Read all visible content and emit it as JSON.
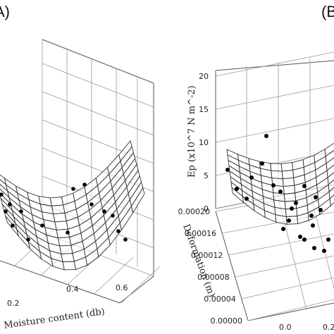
{
  "panels": [
    {
      "label": "A)"
    },
    {
      "label": "(B"
    }
  ],
  "chart_data": [
    {
      "type": "scatter",
      "panel": "A)",
      "xlabel": "Moisture content (db)",
      "x_ticks": [
        "0.2",
        "0.4",
        "0.6"
      ],
      "points": [
        {
          "x": 0.05,
          "y": 12
        },
        {
          "x": 0.08,
          "y": 10
        },
        {
          "x": 0.1,
          "y": 14
        },
        {
          "x": 0.12,
          "y": 9
        },
        {
          "x": 0.15,
          "y": 11
        },
        {
          "x": 0.2,
          "y": 8
        },
        {
          "x": 0.25,
          "y": 7
        },
        {
          "x": 0.3,
          "y": 6
        },
        {
          "x": 0.35,
          "y": 7
        },
        {
          "x": 0.4,
          "y": 6
        },
        {
          "x": 0.45,
          "y": 8
        },
        {
          "x": 0.5,
          "y": 9
        },
        {
          "x": 0.55,
          "y": 11
        },
        {
          "x": 0.58,
          "y": 12
        },
        {
          "x": 0.6,
          "y": 10
        }
      ]
    },
    {
      "type": "scatter",
      "panel": "(B",
      "zlabel": "Ep (x10^7 N m^-2)",
      "ylabel": "Deformation (m)",
      "z_ticks": [
        "0",
        "5",
        "10",
        "15",
        "20"
      ],
      "y_ticks": [
        "0.00000",
        "0.00004",
        "0.00008",
        "0.00012",
        "0.00016",
        "0.00020"
      ],
      "x_ticks": [
        "0.0",
        "0.2"
      ],
      "zlim": [
        0,
        20
      ],
      "points": [
        {
          "x": 0.02,
          "y": 0.00018,
          "z": 6
        },
        {
          "x": 0.05,
          "y": 0.00016,
          "z": 11.5
        },
        {
          "x": 0.06,
          "y": 0.00015,
          "z": 7
        },
        {
          "x": 0.08,
          "y": 0.00017,
          "z": 4.5
        },
        {
          "x": 0.1,
          "y": 0.00014,
          "z": 4
        },
        {
          "x": 0.12,
          "y": 0.00012,
          "z": 3.5
        },
        {
          "x": 0.14,
          "y": 0.00011,
          "z": 5
        },
        {
          "x": 0.16,
          "y": 0.0001,
          "z": 3
        },
        {
          "x": 0.18,
          "y": 9e-05,
          "z": 4
        },
        {
          "x": 0.2,
          "y": 8e-05,
          "z": 3.5
        },
        {
          "x": 0.22,
          "y": 7e-05,
          "z": 5
        },
        {
          "x": 0.24,
          "y": 6e-05,
          "z": 4
        },
        {
          "x": 0.26,
          "y": 5e-05,
          "z": 6
        },
        {
          "x": 0.28,
          "y": 4e-05,
          "z": 5.5
        }
      ]
    }
  ]
}
